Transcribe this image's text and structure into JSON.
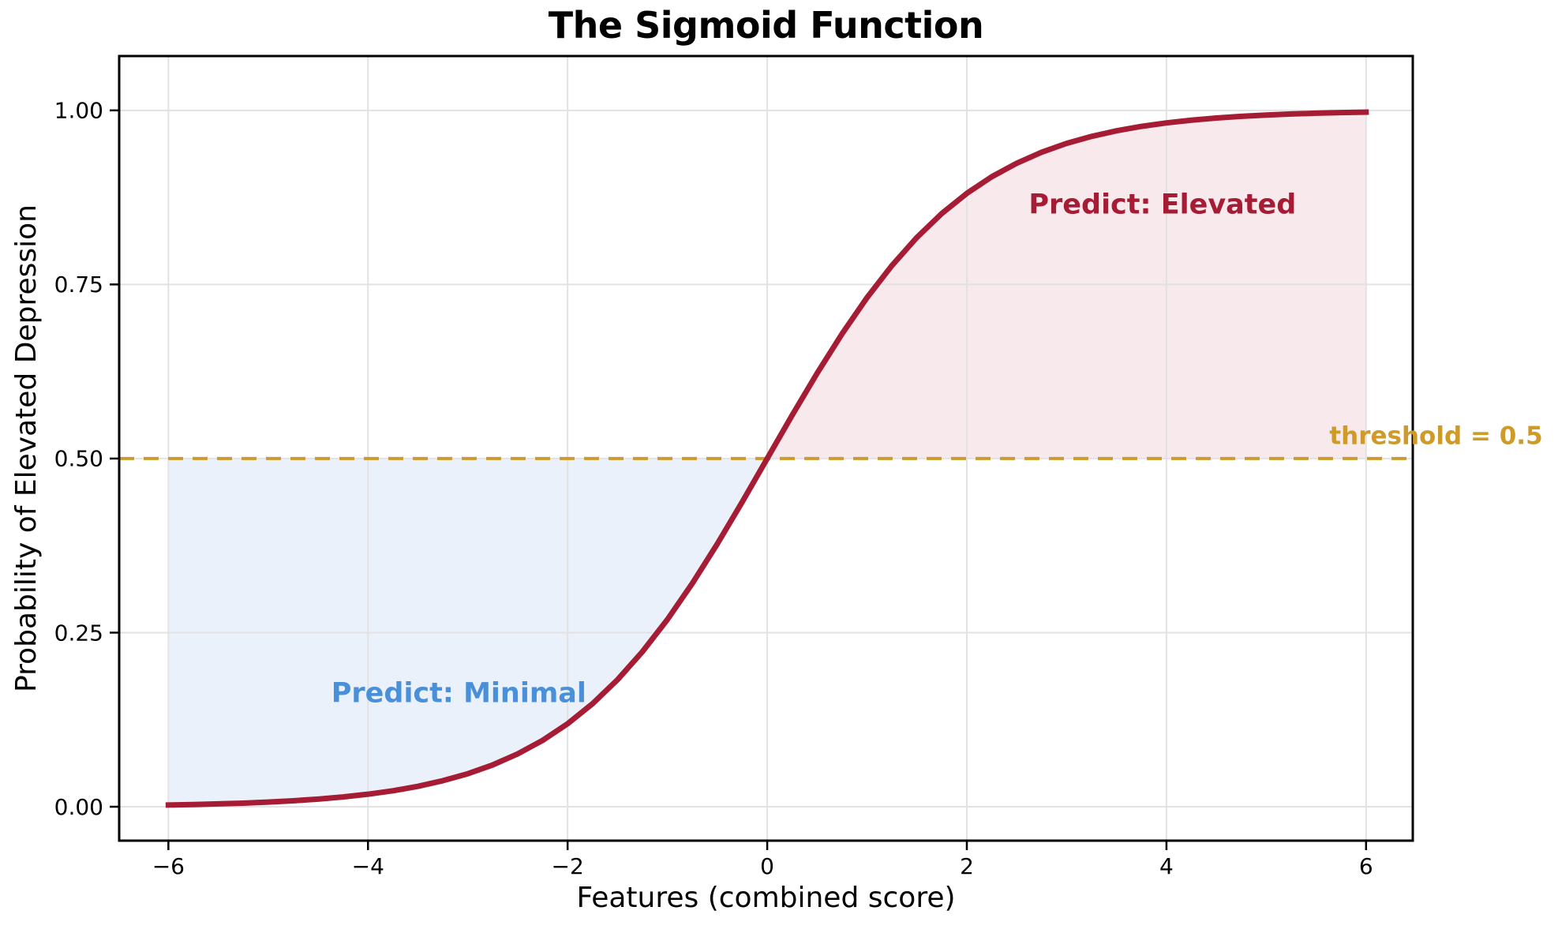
{
  "chart_data": {
    "type": "line",
    "title": "The Sigmoid Function",
    "xlabel": "Features (combined score)",
    "ylabel": "Probability of Elevated Depression",
    "xlim": [
      -6.493,
      6.468
    ],
    "ylim": [
      -0.0487,
      1.078
    ],
    "grid": true,
    "grid_color": "#e2e2e2",
    "spine_color": "#000000",
    "x_ticks": [
      -6,
      -4,
      -2,
      0,
      2,
      4,
      6
    ],
    "x_tick_labels": [
      "−6",
      "−4",
      "−2",
      "0",
      "2",
      "4",
      "6"
    ],
    "y_ticks": [
      0,
      0.25,
      0.5,
      0.75,
      1.0
    ],
    "y_tick_labels": [
      "0.00",
      "0.25",
      "0.50",
      "0.75",
      "1.00"
    ],
    "series": [
      {
        "name": "sigmoid-curve",
        "color": "#a51c34",
        "linewidth": 7,
        "x": [
          -6,
          -5.75,
          -5.5,
          -5.25,
          -5,
          -4.75,
          -4.5,
          -4.25,
          -4,
          -3.75,
          -3.5,
          -3.25,
          -3,
          -2.75,
          -2.5,
          -2.25,
          -2,
          -1.75,
          -1.5,
          -1.25,
          -1,
          -0.75,
          -0.5,
          -0.25,
          0,
          0.25,
          0.5,
          0.75,
          1,
          1.25,
          1.5,
          1.75,
          2,
          2.25,
          2.5,
          2.75,
          3,
          3.25,
          3.5,
          3.75,
          4,
          4.25,
          4.5,
          4.75,
          5,
          5.25,
          5.5,
          5.75,
          6
        ],
        "y": [
          0.0025,
          0.0032,
          0.0041,
          0.0052,
          0.0067,
          0.0086,
          0.011,
          0.0141,
          0.018,
          0.0229,
          0.0293,
          0.0374,
          0.0474,
          0.0601,
          0.0759,
          0.0953,
          0.1192,
          0.148,
          0.1824,
          0.2227,
          0.2689,
          0.3208,
          0.3775,
          0.4378,
          0.5,
          0.5622,
          0.6225,
          0.6792,
          0.7311,
          0.7773,
          0.8176,
          0.852,
          0.8808,
          0.9047,
          0.9241,
          0.9399,
          0.9526,
          0.9626,
          0.9707,
          0.977,
          0.982,
          0.9859,
          0.989,
          0.9914,
          0.9933,
          0.9948,
          0.9959,
          0.9968,
          0.9975
        ]
      }
    ],
    "threshold_line": {
      "y": 0.5,
      "color": "#ce9b2b",
      "dash": [
        19,
        12
      ],
      "width": 4
    },
    "regions": [
      {
        "name": "minimal",
        "x_range": [
          -6,
          0
        ],
        "fill": "#ebf1fa"
      },
      {
        "name": "elevated",
        "x_range": [
          0,
          6
        ],
        "fill": "#f7e9ec"
      }
    ],
    "annotations": [
      {
        "text": "Predict: Minimal",
        "x": -3.09,
        "y": 0.164,
        "color": "#4a90d8",
        "size": 35,
        "weight": "bold",
        "anchor": "middle"
      },
      {
        "text": "Predict: Elevated",
        "x": 3.96,
        "y": 0.866,
        "color": "#a51c34",
        "size": 35,
        "weight": "bold",
        "anchor": "middle"
      },
      {
        "text": "threshold = 0.5",
        "x": 7.77,
        "y": 0.533,
        "color": "#ce9b2b",
        "size": 31,
        "weight": "bold",
        "anchor": "end"
      }
    ],
    "tick_label_size": 28,
    "tick_label_color": "#000000"
  }
}
